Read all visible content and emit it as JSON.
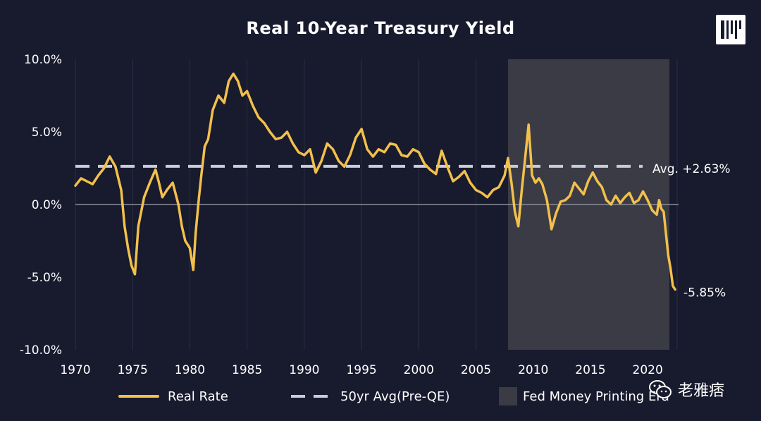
{
  "chart_data": {
    "type": "line",
    "title": "Real 10-Year Treasury Yield",
    "xlabel": "",
    "ylabel": "",
    "xlim": [
      1970,
      2022.7
    ],
    "ylim": [
      -10,
      10
    ],
    "x_ticks": [
      "1970",
      "1975",
      "1980",
      "1985",
      "1990",
      "1995",
      "2000",
      "2005",
      "2010",
      "2015",
      "2020"
    ],
    "y_ticks": [
      "10.0%",
      "5.0%",
      "0.0%",
      "-5.0%",
      "-10.0%"
    ],
    "y_tick_values": [
      10,
      5,
      0,
      -5,
      -10
    ],
    "grid": "vertical",
    "series": [
      {
        "name": "Real Rate",
        "color": "#f2c04b",
        "x": [
          1970.0,
          1970.5,
          1971.0,
          1971.5,
          1972.0,
          1972.5,
          1973.0,
          1973.5,
          1974.0,
          1974.3,
          1974.6,
          1974.9,
          1975.2,
          1975.5,
          1976.0,
          1976.5,
          1977.0,
          1977.3,
          1977.6,
          1978.0,
          1978.5,
          1979.0,
          1979.3,
          1979.6,
          1980.0,
          1980.3,
          1980.5,
          1980.8,
          1981.0,
          1981.3,
          1981.6,
          1982.0,
          1982.5,
          1983.0,
          1983.4,
          1983.8,
          1984.2,
          1984.6,
          1985.0,
          1985.5,
          1986.0,
          1986.5,
          1987.0,
          1987.5,
          1988.0,
          1988.5,
          1989.0,
          1989.5,
          1990.0,
          1990.5,
          1991.0,
          1991.5,
          1992.0,
          1992.5,
          1993.0,
          1993.5,
          1994.0,
          1994.5,
          1995.0,
          1995.5,
          1996.0,
          1996.5,
          1997.0,
          1997.5,
          1998.0,
          1998.5,
          1999.0,
          1999.5,
          2000.0,
          2000.5,
          2001.0,
          2001.5,
          2002.0,
          2002.5,
          2003.0,
          2003.5,
          2004.0,
          2004.5,
          2005.0,
          2005.5,
          2006.0,
          2006.5,
          2007.0,
          2007.5,
          2007.8,
          2008.1,
          2008.4,
          2008.7,
          2009.0,
          2009.3,
          2009.6,
          2009.9,
          2010.2,
          2010.5,
          2010.8,
          2011.2,
          2011.6,
          2012.0,
          2012.4,
          2012.8,
          2013.2,
          2013.6,
          2014.0,
          2014.4,
          2014.8,
          2015.2,
          2015.6,
          2016.0,
          2016.4,
          2016.8,
          2017.2,
          2017.6,
          2018.0,
          2018.4,
          2018.8,
          2019.2,
          2019.6,
          2020.0,
          2020.4,
          2020.8,
          2021.0,
          2021.2,
          2021.4,
          2021.6,
          2021.8,
          2022.0,
          2022.2,
          2022.4
        ],
        "values": [
          1.3,
          1.8,
          1.6,
          1.4,
          2.0,
          2.5,
          3.3,
          2.6,
          1.0,
          -1.5,
          -3.0,
          -4.2,
          -4.8,
          -1.5,
          0.5,
          1.5,
          2.4,
          1.5,
          0.5,
          1.0,
          1.5,
          0.0,
          -1.5,
          -2.5,
          -3.0,
          -4.5,
          -2.0,
          0.5,
          2.0,
          4.0,
          4.5,
          6.5,
          7.5,
          7.0,
          8.5,
          9.0,
          8.5,
          7.5,
          7.8,
          6.8,
          6.0,
          5.6,
          5.0,
          4.5,
          4.6,
          5.0,
          4.2,
          3.6,
          3.4,
          3.8,
          2.2,
          3.0,
          4.2,
          3.8,
          3.0,
          2.6,
          3.4,
          4.6,
          5.2,
          3.8,
          3.3,
          3.8,
          3.6,
          4.2,
          4.1,
          3.4,
          3.3,
          3.8,
          3.6,
          2.8,
          2.4,
          2.1,
          3.7,
          2.6,
          1.6,
          1.9,
          2.3,
          1.5,
          1.0,
          0.8,
          0.5,
          1.0,
          1.2,
          2.0,
          3.2,
          1.5,
          -0.5,
          -1.5,
          1.0,
          3.2,
          5.5,
          2.0,
          1.5,
          1.8,
          1.4,
          0.3,
          -1.7,
          -0.6,
          0.2,
          0.3,
          0.6,
          1.5,
          1.1,
          0.7,
          1.6,
          2.2,
          1.6,
          1.2,
          0.3,
          0.0,
          0.6,
          0.1,
          0.5,
          0.8,
          0.1,
          0.3,
          0.9,
          0.3,
          -0.4,
          -0.7,
          0.3,
          -0.3,
          -0.5,
          -2.0,
          -3.5,
          -4.4,
          -5.6,
          -5.85
        ]
      },
      {
        "name": "50yr Avg(Pre-QE)",
        "color": "#c9ccd6",
        "style": "dashed",
        "value": 2.63
      }
    ],
    "shaded_region": {
      "name": "Fed Money Printing Era",
      "x_start": 2007.8,
      "x_end": 2021.9,
      "color": "#3a3b45"
    },
    "annotations": [
      {
        "text": "Avg. +2.63%",
        "x": 2022.7,
        "y": 2.63
      },
      {
        "text": "-5.85%",
        "x": 2022.7,
        "y": -5.85
      }
    ],
    "legend_position": "bottom"
  },
  "legend": {
    "real_rate": "Real Rate",
    "avg": "50yr Avg(Pre-QE)",
    "fed": "Fed Money Printing Era"
  },
  "watermark": {
    "text": "老雅痞",
    "icon": "wechat-icon"
  },
  "logo": {
    "icon": "brand-logo-icon"
  }
}
